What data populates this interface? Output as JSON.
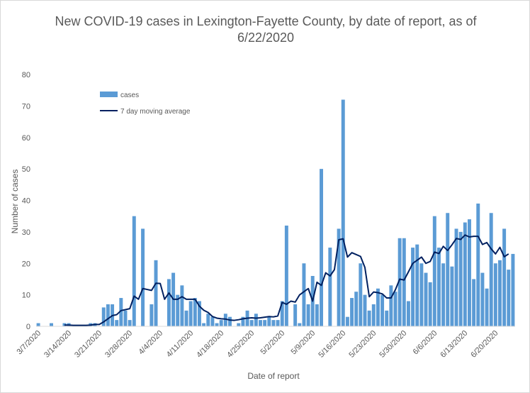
{
  "chart_data": {
    "type": "bar",
    "title": "New COVID-19 cases in Lexington-Fayette County, by date of report, as of 6/22/2020",
    "xlabel": "Date of report",
    "ylabel": "Number of cases",
    "ylim": [
      0,
      80
    ],
    "yticks": [
      0,
      10,
      20,
      30,
      40,
      50,
      60,
      70,
      80
    ],
    "xticks": [
      {
        "label": "3/7/2020",
        "index": 0
      },
      {
        "label": "3/14/2020",
        "index": 7
      },
      {
        "label": "3/21/2020",
        "index": 14
      },
      {
        "label": "3/28/2020",
        "index": 21
      },
      {
        "label": "4/4/2020",
        "index": 28
      },
      {
        "label": "4/11/2020",
        "index": 35
      },
      {
        "label": "4/18/2020",
        "index": 42
      },
      {
        "label": "4/25/2020",
        "index": 49
      },
      {
        "label": "5/2/2020",
        "index": 56
      },
      {
        "label": "5/9/2020",
        "index": 63
      },
      {
        "label": "5/16/2020",
        "index": 70
      },
      {
        "label": "5/23/2020",
        "index": 77
      },
      {
        "label": "5/30/2020",
        "index": 84
      },
      {
        "label": "6/6/2020",
        "index": 91
      },
      {
        "label": "6/13/2020",
        "index": 98
      },
      {
        "label": "6/20/2020",
        "index": 105
      }
    ],
    "x_start": "3/7/2020",
    "x_end": "6/22/2020",
    "grid": false,
    "legend_position": "top-left",
    "series": [
      {
        "name": "cases",
        "kind": "bar",
        "color": "#5b9bd5",
        "values": [
          1,
          0,
          0,
          1,
          0,
          0,
          1,
          1,
          0,
          0,
          0,
          0,
          1,
          1,
          0,
          6,
          7,
          7,
          2,
          9,
          5,
          2,
          35,
          0,
          31,
          0,
          7,
          21,
          0,
          0,
          15,
          17,
          10,
          13,
          5,
          8,
          9,
          8,
          1,
          4,
          3,
          1,
          2,
          4,
          3,
          0,
          1,
          3,
          5,
          2,
          4,
          2,
          2,
          3,
          2,
          2,
          8,
          32,
          0,
          7,
          1,
          20,
          7,
          16,
          7,
          50,
          0,
          25,
          0,
          31,
          72,
          3,
          9,
          11,
          20,
          10,
          5,
          7,
          12,
          10,
          5,
          13,
          11,
          28,
          28,
          8,
          25,
          26,
          20,
          17,
          14,
          35,
          25,
          20,
          36,
          19,
          31,
          30,
          33,
          34,
          15,
          39,
          17,
          12,
          36,
          20,
          21,
          31,
          18,
          23
        ]
      },
      {
        "name": "7 day moving average",
        "kind": "line",
        "color": "#002060",
        "values": [
          null,
          null,
          null,
          null,
          null,
          null,
          0.4,
          0.4,
          0.3,
          0.3,
          0.3,
          0.3,
          0.4,
          0.6,
          0.6,
          1.4,
          2.4,
          3.4,
          3.7,
          5.0,
          5.3,
          5.6,
          9.6,
          8.6,
          12.0,
          11.7,
          11.4,
          13.7,
          13.6,
          8.6,
          10.6,
          8.6,
          8.6,
          9.4,
          8.6,
          8.6,
          8.6,
          6.4,
          5.1,
          4.4,
          3.1,
          2.6,
          2.4,
          2.3,
          2.0,
          1.9,
          2.1,
          2.4,
          2.6,
          2.7,
          2.6,
          2.7,
          2.9,
          3.1,
          3.0,
          3.3,
          7.6,
          7.0,
          8.0,
          7.7,
          10.0,
          11.0,
          12.0,
          8.0,
          14.0,
          13.0,
          17.0,
          16.0,
          18.0,
          27.5,
          27.8,
          22.0,
          23.4,
          22.8,
          22.2,
          18.7,
          9.4,
          10.9,
          10.7,
          10.3,
          9.0,
          9.0,
          11.6,
          15.0,
          14.7,
          17.3,
          20.0,
          21.0,
          22.0,
          20.0,
          20.6,
          23.6,
          23.1,
          25.4,
          24.1,
          25.9,
          27.9,
          27.6,
          29.0,
          28.4,
          28.6,
          28.6,
          26.0,
          26.6,
          24.6,
          23.0,
          25.1,
          22.1,
          23.0
        ]
      }
    ]
  }
}
